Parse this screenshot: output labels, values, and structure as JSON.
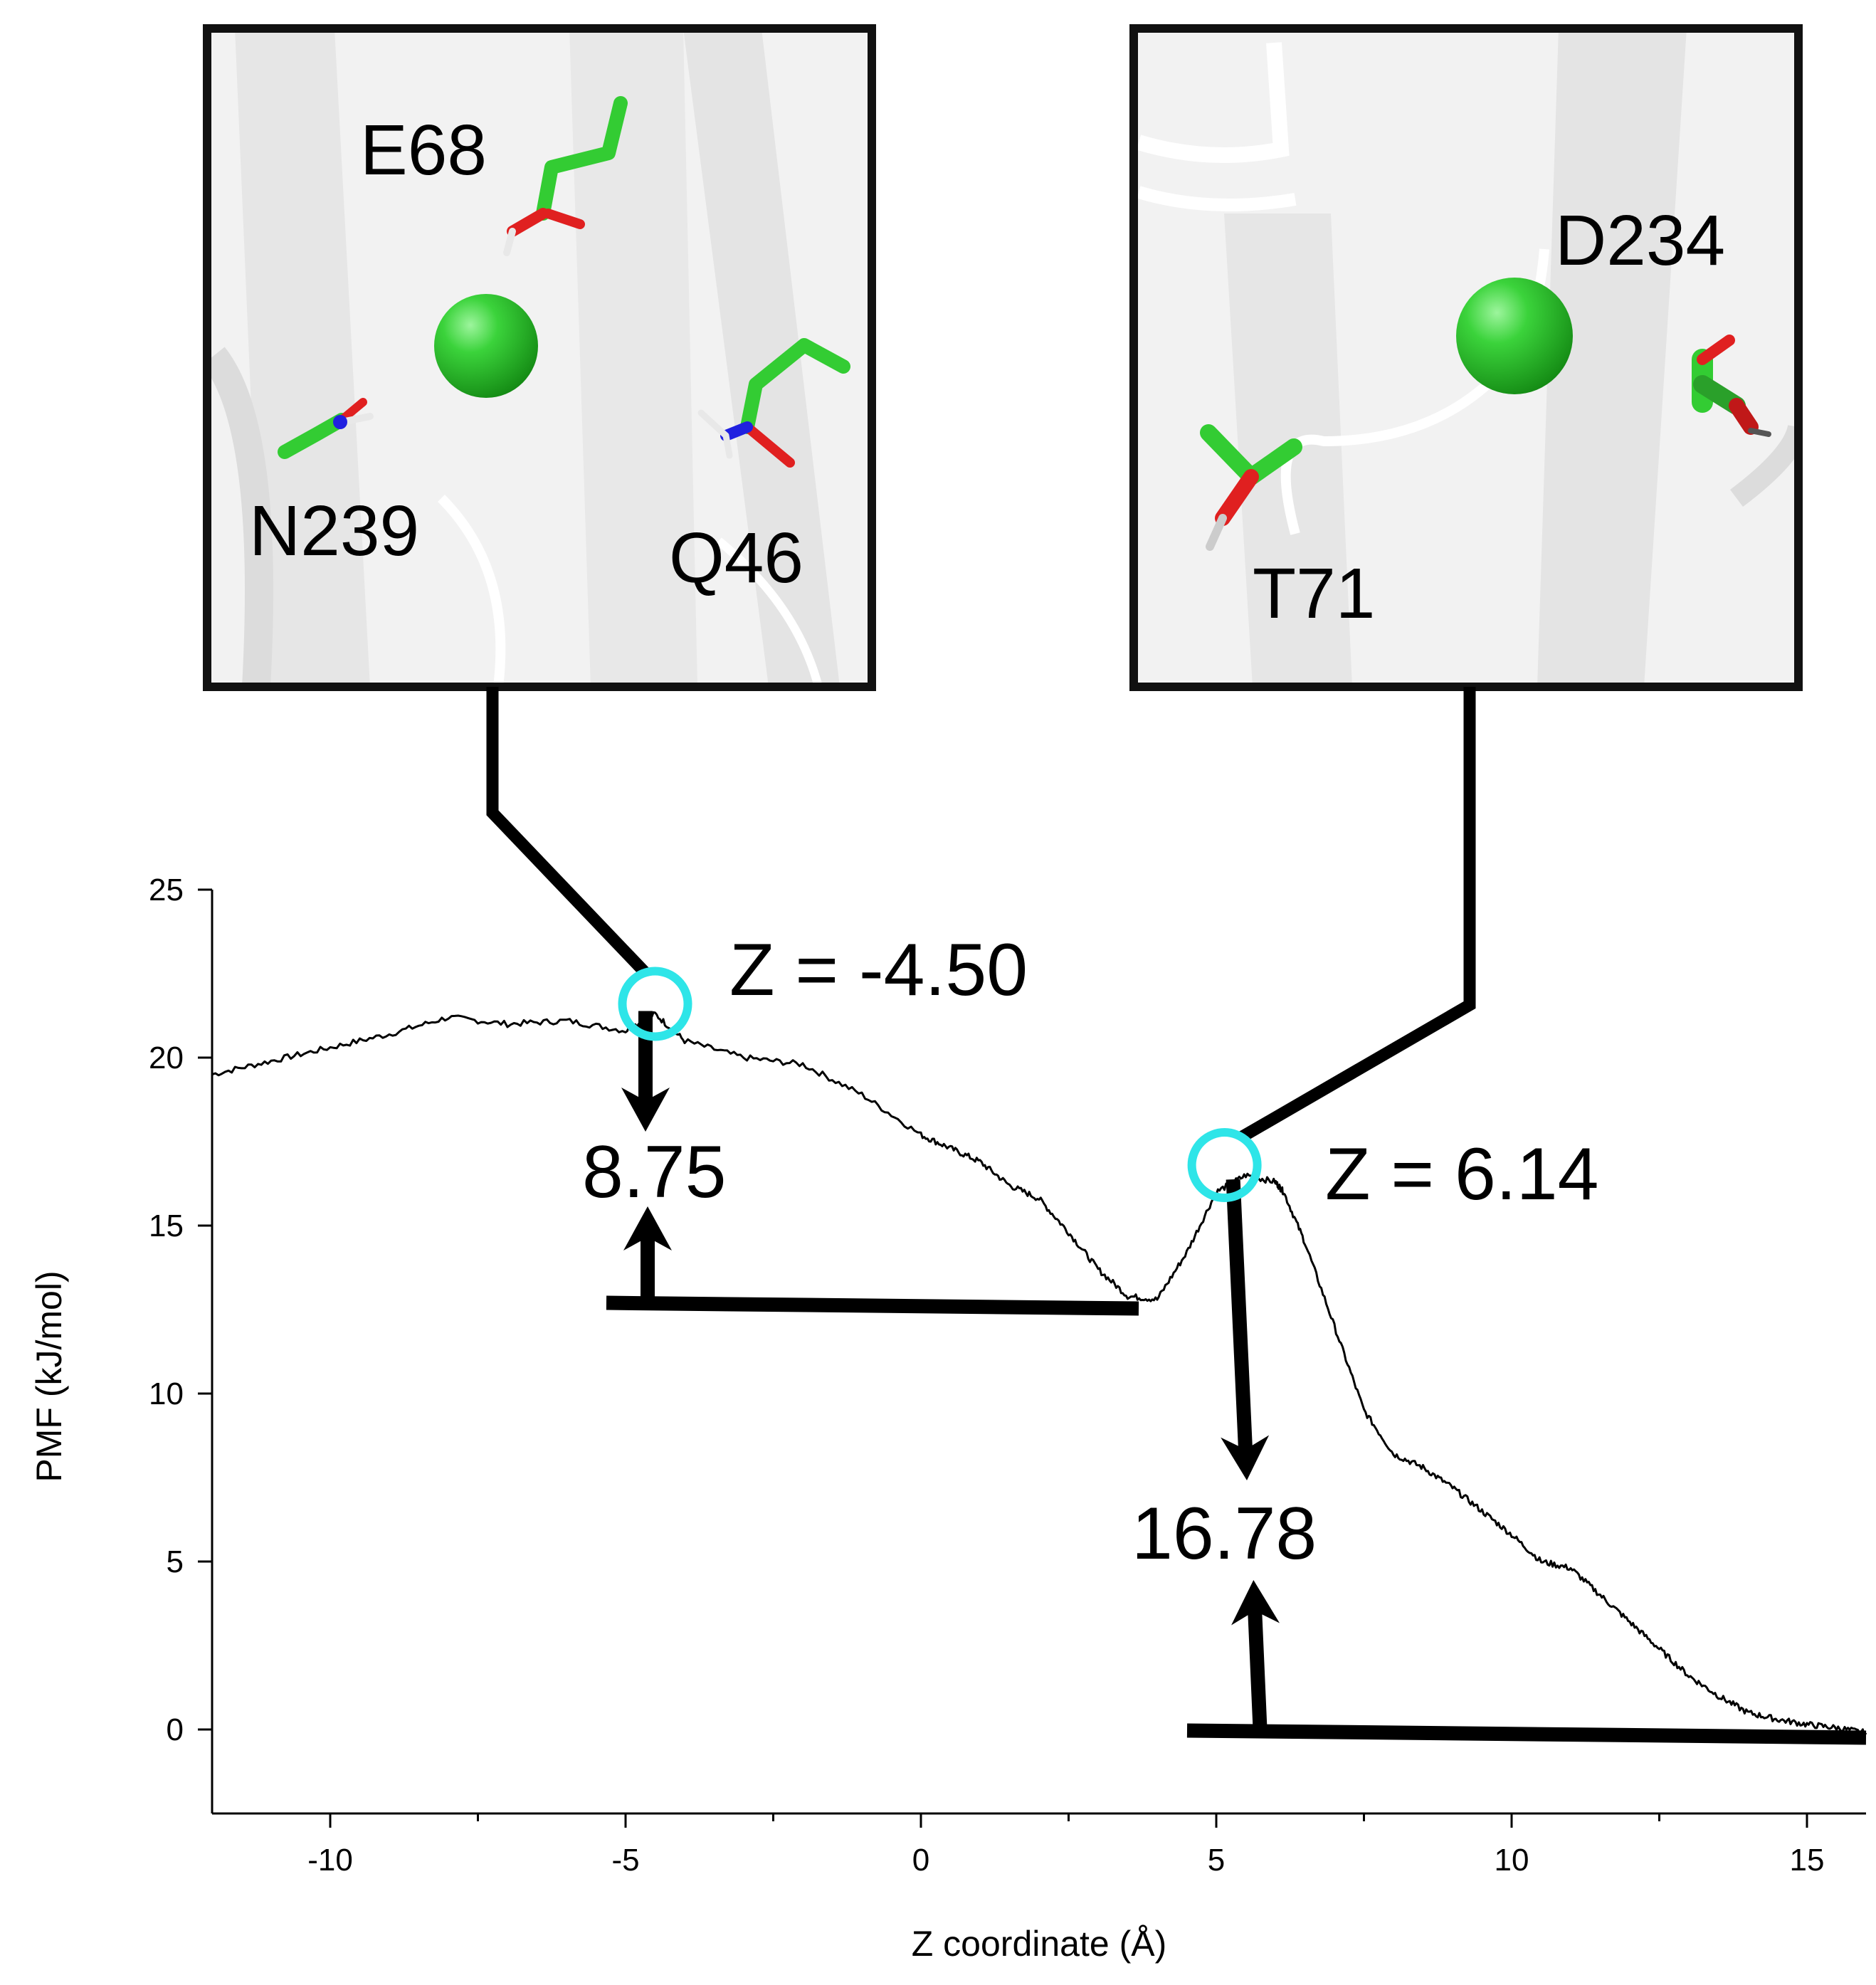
{
  "chart_data": {
    "type": "line",
    "title": "",
    "xlabel": "Z coordinate (Å)",
    "ylabel": "PMF (kJ/mol)",
    "xlim": [
      -12,
      16
    ],
    "ylim": [
      -2.5,
      25
    ],
    "x_ticks": [
      -10,
      -5,
      0,
      5,
      10,
      15
    ],
    "y_ticks": [
      0,
      5,
      10,
      15,
      20,
      25
    ],
    "grid": false,
    "series": [
      {
        "name": "",
        "x": [
          -12,
          -11,
          -10,
          -9,
          -8,
          -7,
          -6,
          -5,
          -4.5,
          -4,
          -3,
          -2,
          -1,
          0,
          0.5,
          1,
          1.5,
          2,
          2.5,
          3,
          3.5,
          4,
          4.5,
          5,
          5.5,
          6,
          6.14,
          6.5,
          7,
          7.5,
          8,
          8.5,
          9,
          9.5,
          10,
          10.5,
          11,
          11.5,
          12,
          12.5,
          13,
          13.5,
          14,
          14.5,
          15,
          15.5,
          16
        ],
        "values": [
          19.5,
          19.9,
          20.3,
          20.7,
          21.2,
          21.0,
          21.1,
          20.8,
          21.3,
          20.5,
          20.0,
          19.8,
          18.9,
          17.7,
          17.3,
          16.9,
          16.2,
          15.8,
          14.8,
          13.7,
          12.9,
          12.8,
          14.2,
          16.0,
          16.5,
          16.3,
          16.0,
          14.5,
          12.0,
          9.5,
          8.2,
          7.8,
          7.2,
          6.5,
          5.8,
          5.0,
          4.8,
          4.0,
          3.2,
          2.4,
          1.6,
          1.0,
          0.5,
          0.3,
          0.15,
          0.05,
          -0.1
        ]
      }
    ],
    "annotations": {
      "marker_left_label": "Z = -4.50",
      "marker_right_label": "Z = 6.14",
      "barrier_left": "8.75",
      "barrier_right": "16.78",
      "marker_left_x": -4.5,
      "marker_left_y": 21.6,
      "marker_right_x": 5.14,
      "marker_right_y": 16.8,
      "baseline_left_y": 12.7,
      "baseline_right_y": -0.2
    }
  },
  "insets": {
    "left": {
      "labels": [
        "E68",
        "N239",
        "Q46"
      ]
    },
    "right": {
      "labels": [
        "D234",
        "T71"
      ]
    }
  },
  "colors": {
    "marker": "#2ee5e8",
    "residue_carbon": "#33cc33",
    "oxygen": "#e02020",
    "nitrogen": "#2020e0",
    "ion": "#22c022"
  }
}
